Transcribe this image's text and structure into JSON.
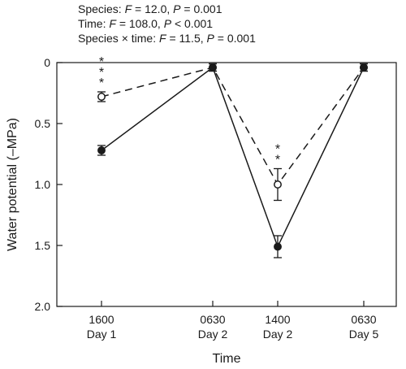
{
  "stats": [
    {
      "pre": "Species: ",
      "f": "F",
      "fval": " = 12.0, ",
      "p": "P",
      "pval": " = 0.001"
    },
    {
      "pre": "Time: ",
      "f": "F",
      "fval": " = 108.0, ",
      "p": "P",
      "pval": " < 0.001"
    },
    {
      "pre": "Species × time: ",
      "f": "F",
      "fval": " = 11.5, ",
      "p": "P",
      "pval": " = 0.001"
    }
  ],
  "chart_data": {
    "type": "line",
    "xlabel": "Time",
    "ylabel": "Water potential (–MPa)",
    "categories": [
      {
        "line1": "1600",
        "line2": "Day 1"
      },
      {
        "line1": "0630",
        "line2": "Day 2"
      },
      {
        "line1": "1400",
        "line2": "Day 2"
      },
      {
        "line1": "0630",
        "line2": "Day 5"
      }
    ],
    "ylim": [
      0,
      2.0
    ],
    "y_inverted": true,
    "yticks": [
      "0",
      "0.5",
      "1.0",
      "1.5",
      "2.0"
    ],
    "ytick_values": [
      0,
      0.5,
      1.0,
      1.5,
      2.0
    ],
    "series": [
      {
        "marker": "open-circle",
        "line_style": "dashed",
        "values": [
          0.28,
          0.04,
          1.0,
          0.04
        ],
        "errors": [
          0.04,
          0.03,
          0.13,
          0.03
        ]
      },
      {
        "marker": "filled-circle",
        "line_style": "solid",
        "values": [
          0.72,
          0.04,
          1.51,
          0.04
        ],
        "errors": [
          0.04,
          0.03,
          0.09,
          0.03
        ]
      }
    ],
    "significance": [
      {
        "category_index": 0,
        "label": "***"
      },
      {
        "category_index": 2,
        "label": "**"
      }
    ]
  }
}
